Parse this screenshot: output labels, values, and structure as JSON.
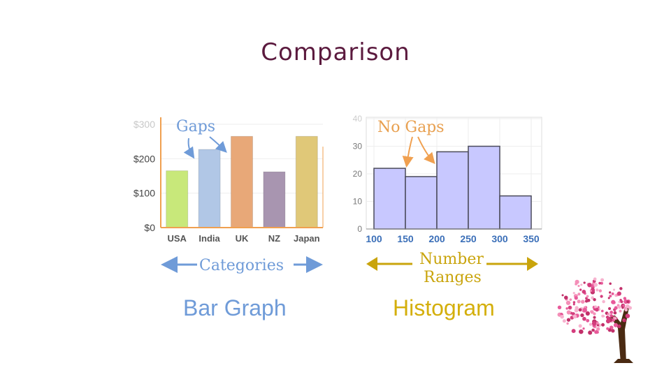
{
  "slide": {
    "title": "Comparison"
  },
  "colors": {
    "title": "#5b1a3e",
    "bar_axis": "#f0a050",
    "bar_gap_arrow": "#6f9bd8",
    "categories_arrow": "#6f9bd8",
    "bar_graph_label": "#6f9bd8",
    "histogram_bar": "#c8c8ff",
    "histogram_label": "#d4af0c",
    "no_gaps_text": "#e8a050",
    "number_ranges_arrow": "#c9a40c"
  },
  "chart_data": [
    {
      "type": "bar",
      "categories": [
        "USA",
        "India",
        "UK",
        "NZ",
        "Japan"
      ],
      "values": [
        165,
        227,
        265,
        162,
        265
      ],
      "colors": [
        "#c8e87a",
        "#b1c7e6",
        "#e8a878",
        "#a895b0",
        "#e0c878"
      ],
      "ylim": [
        0,
        300
      ],
      "yticks": [
        "$0",
        "$100",
        "$200",
        "$300"
      ],
      "ytick_values": [
        0,
        100,
        200,
        300
      ],
      "grid": true,
      "annotations": {
        "gaps": "Gaps",
        "axis_caption": "Categories",
        "label": "Bar Graph"
      }
    },
    {
      "type": "bar",
      "bins": [
        [
          100,
          150
        ],
        [
          150,
          200
        ],
        [
          200,
          250
        ],
        [
          250,
          300
        ],
        [
          300,
          350
        ]
      ],
      "values": [
        22,
        19,
        28,
        30,
        12
      ],
      "xticks": [
        "100",
        "150",
        "200",
        "250",
        "300",
        "350"
      ],
      "xtick_values": [
        100,
        150,
        200,
        250,
        300,
        350
      ],
      "yticks": [
        "0",
        "10",
        "20",
        "30",
        "40"
      ],
      "ytick_values": [
        0,
        10,
        20,
        30,
        40
      ],
      "ylim": [
        0,
        40
      ],
      "grid": true,
      "annotations": {
        "no_gaps": "No Gaps",
        "axis_caption_line1": "Number",
        "axis_caption_line2": "Ranges",
        "label": "Histogram"
      }
    }
  ]
}
